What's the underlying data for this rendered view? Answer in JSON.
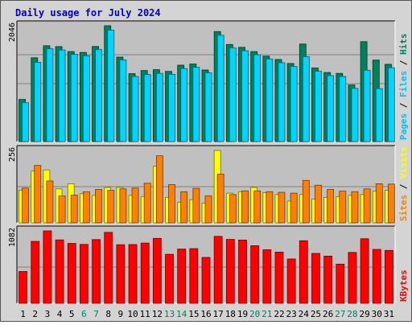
{
  "chart_data": {
    "type": "bar",
    "title": "Daily usage for July 2024",
    "categories": [
      "1",
      "2",
      "3",
      "4",
      "5",
      "6",
      "7",
      "8",
      "9",
      "10",
      "11",
      "12",
      "13",
      "14",
      "15",
      "16",
      "17",
      "18",
      "19",
      "20",
      "21",
      "22",
      "23",
      "24",
      "25",
      "26",
      "27",
      "28",
      "29",
      "30",
      "31"
    ],
    "weekend_categories": [
      "6",
      "7",
      "13",
      "14",
      "20",
      "21",
      "27",
      "28"
    ],
    "panels": [
      {
        "id": "top",
        "ymax_label": "2046",
        "ymax": 2046,
        "side_labels": [
          {
            "text": "Pages",
            "color": "#00bfff"
          },
          {
            "text": " / ",
            "color": "#000000"
          },
          {
            "text": "Files",
            "color": "#00bfff"
          },
          {
            "text": " / ",
            "color": "#000000"
          },
          {
            "text": "Hits",
            "color": "#008060"
          }
        ],
        "series": [
          {
            "name": "Hits",
            "color": "#00805c",
            "values": [
              745,
              1480,
              1693,
              1678,
              1590,
              1575,
              1680,
              2046,
              1492,
              1200,
              1255,
              1270,
              1240,
              1350,
              1370,
              1265,
              1944,
              1715,
              1665,
              1590,
              1510,
              1450,
              1380,
              1723,
              1300,
              1220,
              1205,
              1000,
              1765,
              1440,
              1365
            ]
          },
          {
            "name": "Files",
            "color": "#00d4ff",
            "values": [
              686,
              1400,
              1641,
              1618,
              1540,
              1517,
              1625,
              1969,
              1443,
              1150,
              1185,
              1205,
              1189,
              1290,
              1312,
              1215,
              1877,
              1653,
              1605,
              1535,
              1460,
              1393,
              1328,
              1500,
              1242,
              1165,
              1150,
              940,
              1260,
              935,
              1305
            ]
          }
        ]
      },
      {
        "id": "mid",
        "ymax_label": "256",
        "ymax": 256,
        "side_labels": [
          {
            "text": "Sites",
            "color": "#ff8000"
          },
          {
            "text": " / ",
            "color": "#000000"
          },
          {
            "text": "Visits",
            "color": "#ffff00"
          }
        ],
        "series": [
          {
            "name": "Visits",
            "color": "#ffff00",
            "values": [
              115,
              183,
              187,
              120,
              138,
              103,
              97,
              125,
              125,
              97,
              93,
              200,
              90,
              73,
              82,
              70,
              256,
              105,
              110,
              125,
              107,
              100,
              77,
              100,
              84,
              90,
              93,
              97,
              100,
              112,
              115
            ]
          },
          {
            "name": "Sites",
            "color": "#ff8000",
            "values": [
              123,
              203,
              148,
              95,
              98,
              110,
              118,
              115,
              120,
              123,
              140,
              237,
              135,
              110,
              122,
              95,
              172,
              100,
              113,
              113,
              110,
              108,
              105,
              150,
              133,
              118,
              112,
              110,
              120,
              138,
              137
            ]
          }
        ]
      },
      {
        "id": "bot",
        "ymax_label": "1082",
        "ymax": 1082,
        "side_labels": [
          {
            "text": "KBytes",
            "color": "#ff0000"
          }
        ],
        "series": [
          {
            "name": "KBytes",
            "color": "#ff0000",
            "values": [
              475,
              925,
              1082,
              947,
              895,
              880,
              952,
              1060,
              875,
              878,
              900,
              970,
              732,
              810,
              817,
              685,
              1000,
              955,
              945,
              860,
              800,
              765,
              662,
              935,
              745,
              705,
              585,
              760,
              965,
              805,
              790
            ]
          }
        ]
      }
    ]
  }
}
